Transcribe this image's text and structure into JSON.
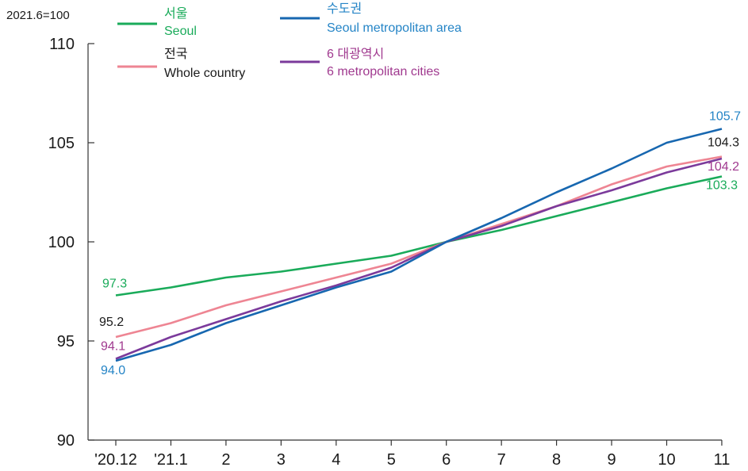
{
  "chart_data": {
    "type": "line",
    "base_label": "2021.6=100",
    "categories": [
      "'20.12",
      "'21.1",
      "2",
      "3",
      "4",
      "5",
      "6",
      "7",
      "8",
      "9",
      "10",
      "11"
    ],
    "ylim": [
      90,
      110
    ],
    "yticks": [
      90,
      95,
      100,
      105,
      110
    ],
    "grid": false,
    "legend_position": "top",
    "series": [
      {
        "key": "seoul",
        "name_ko": "서울",
        "name_en": "Seoul",
        "color": "#1aab5a",
        "values": [
          97.3,
          97.7,
          98.2,
          98.5,
          98.9,
          99.3,
          100.0,
          100.6,
          101.3,
          102.0,
          102.7,
          103.3
        ],
        "labels": {
          "first": "97.3",
          "last": "103.3"
        }
      },
      {
        "key": "capital",
        "name_ko": "수도권",
        "name_en": "Seoul metropolitan area",
        "color": "#1767b0",
        "values": [
          94.0,
          94.8,
          95.9,
          96.8,
          97.7,
          98.5,
          100.0,
          101.2,
          102.5,
          103.7,
          105.0,
          105.7
        ],
        "labels": {
          "first": "94.0",
          "last": "105.7"
        }
      },
      {
        "key": "whole",
        "name_ko": "전국",
        "name_en": "Whole country",
        "color": "#ee8593",
        "values": [
          95.2,
          95.9,
          96.8,
          97.5,
          98.2,
          98.9,
          100.0,
          100.9,
          101.8,
          102.9,
          103.8,
          104.3
        ],
        "labels": {
          "first": "95.2",
          "last": "104.3"
        }
      },
      {
        "key": "metro6",
        "name_ko": "6 대광역시",
        "name_en": "6 metropolitan cities",
        "color": "#7b3a9b",
        "values": [
          94.1,
          95.2,
          96.1,
          97.0,
          97.8,
          98.7,
          100.0,
          100.8,
          101.8,
          102.6,
          103.5,
          104.2
        ],
        "labels": {
          "first": "94.1",
          "last": "104.2"
        }
      }
    ],
    "label_colors": {
      "seoul": "#1aab5a",
      "capital": "#2484c6",
      "whole": "#1a1a1a",
      "metro6": "#a0398f"
    }
  }
}
